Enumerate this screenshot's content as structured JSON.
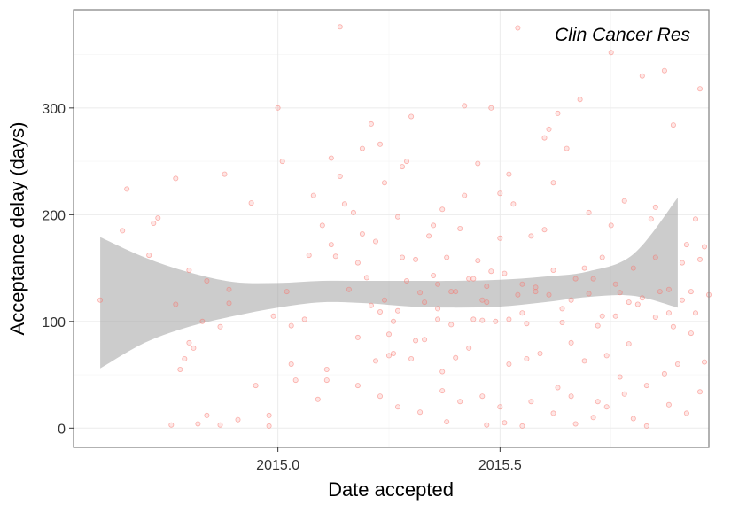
{
  "chart_data": {
    "type": "scatter",
    "annotation": "Clin Cancer Res",
    "xlabel": "Date accepted",
    "ylabel": "Acceptance delay (days)",
    "xlim": [
      2014.54,
      2015.97
    ],
    "ylim": [
      -18,
      392
    ],
    "x_ticks": [
      2015.0,
      2015.5
    ],
    "x_tick_labels": [
      "2015.0",
      "2015.5"
    ],
    "y_ticks": [
      0,
      100,
      200,
      300
    ],
    "y_tick_labels": [
      "0",
      "100",
      "200",
      "300"
    ],
    "grid": true,
    "colors": {
      "points": "#f8766d",
      "band": "#999999",
      "grid": "#ebebeb",
      "border": "#7f7f7f"
    },
    "smooth_band": {
      "x": [
        2014.6,
        2014.7,
        2014.8,
        2014.9,
        2015.0,
        2015.1,
        2015.2,
        2015.3,
        2015.4,
        2015.5,
        2015.6,
        2015.7,
        2015.8,
        2015.9
      ],
      "lower": [
        56,
        80,
        95,
        105,
        113,
        118,
        117,
        114,
        113,
        114,
        118,
        123,
        124,
        113
      ],
      "upper": [
        179,
        160,
        146,
        137,
        136,
        138,
        138,
        138,
        138,
        139,
        142,
        147,
        163,
        216
      ]
    },
    "points": [
      [
        2014.6,
        120
      ],
      [
        2014.65,
        185
      ],
      [
        2014.66,
        224
      ],
      [
        2014.71,
        162
      ],
      [
        2014.72,
        192
      ],
      [
        2014.73,
        197
      ],
      [
        2014.76,
        3
      ],
      [
        2014.77,
        234
      ],
      [
        2014.77,
        116
      ],
      [
        2014.78,
        55
      ],
      [
        2014.79,
        65
      ],
      [
        2014.8,
        80
      ],
      [
        2014.8,
        148
      ],
      [
        2014.81,
        75
      ],
      [
        2014.82,
        4
      ],
      [
        2014.83,
        100
      ],
      [
        2014.84,
        138
      ],
      [
        2014.84,
        12
      ],
      [
        2014.87,
        95
      ],
      [
        2014.87,
        3
      ],
      [
        2014.88,
        238
      ],
      [
        2014.89,
        130
      ],
      [
        2014.89,
        117
      ],
      [
        2014.91,
        8
      ],
      [
        2014.94,
        211
      ],
      [
        2014.95,
        40
      ],
      [
        2014.98,
        2
      ],
      [
        2014.98,
        12
      ],
      [
        2014.99,
        105
      ],
      [
        2015.0,
        300
      ],
      [
        2015.01,
        250
      ],
      [
        2015.02,
        128
      ],
      [
        2015.03,
        60
      ],
      [
        2015.03,
        96
      ],
      [
        2015.04,
        45
      ],
      [
        2015.06,
        102
      ],
      [
        2015.07,
        162
      ],
      [
        2015.08,
        218
      ],
      [
        2015.09,
        27
      ],
      [
        2015.1,
        190
      ],
      [
        2015.11,
        55
      ],
      [
        2015.11,
        45
      ],
      [
        2015.12,
        172
      ],
      [
        2015.12,
        253
      ],
      [
        2015.13,
        161
      ],
      [
        2015.14,
        236
      ],
      [
        2015.14,
        376
      ],
      [
        2015.15,
        210
      ],
      [
        2015.16,
        130
      ],
      [
        2015.17,
        202
      ],
      [
        2015.18,
        85
      ],
      [
        2015.18,
        155
      ],
      [
        2015.19,
        262
      ],
      [
        2015.19,
        182
      ],
      [
        2015.2,
        141
      ],
      [
        2015.21,
        285
      ],
      [
        2015.22,
        63
      ],
      [
        2015.22,
        175
      ],
      [
        2015.23,
        109
      ],
      [
        2015.23,
        266
      ],
      [
        2015.24,
        230
      ],
      [
        2015.25,
        68
      ],
      [
        2015.25,
        88
      ],
      [
        2015.26,
        70
      ],
      [
        2015.27,
        198
      ],
      [
        2015.27,
        110
      ],
      [
        2015.28,
        160
      ],
      [
        2015.28,
        245
      ],
      [
        2015.29,
        250
      ],
      [
        2015.3,
        65
      ],
      [
        2015.3,
        292
      ],
      [
        2015.31,
        82
      ],
      [
        2015.31,
        158
      ],
      [
        2015.32,
        127
      ],
      [
        2015.33,
        83
      ],
      [
        2015.34,
        180
      ],
      [
        2015.35,
        143
      ],
      [
        2015.35,
        190
      ],
      [
        2015.36,
        135
      ],
      [
        2015.36,
        112
      ],
      [
        2015.37,
        53
      ],
      [
        2015.37,
        205
      ],
      [
        2015.38,
        6
      ],
      [
        2015.38,
        160
      ],
      [
        2015.39,
        97
      ],
      [
        2015.39,
        128
      ],
      [
        2015.4,
        66
      ],
      [
        2015.41,
        187
      ],
      [
        2015.42,
        218
      ],
      [
        2015.42,
        302
      ],
      [
        2015.43,
        140
      ],
      [
        2015.43,
        75
      ],
      [
        2015.44,
        102
      ],
      [
        2015.45,
        157
      ],
      [
        2015.45,
        248
      ],
      [
        2015.46,
        120
      ],
      [
        2015.46,
        101
      ],
      [
        2015.47,
        133
      ],
      [
        2015.47,
        3
      ],
      [
        2015.48,
        300
      ],
      [
        2015.48,
        147
      ],
      [
        2015.49,
        100
      ],
      [
        2015.5,
        220
      ],
      [
        2015.5,
        178
      ],
      [
        2015.51,
        145
      ],
      [
        2015.51,
        5
      ],
      [
        2015.52,
        238
      ],
      [
        2015.52,
        60
      ],
      [
        2015.53,
        210
      ],
      [
        2015.54,
        375
      ],
      [
        2015.54,
        125
      ],
      [
        2015.55,
        135
      ],
      [
        2015.55,
        2
      ],
      [
        2015.56,
        65
      ],
      [
        2015.56,
        98
      ],
      [
        2015.57,
        180
      ],
      [
        2015.58,
        128
      ],
      [
        2015.59,
        70
      ],
      [
        2015.6,
        272
      ],
      [
        2015.6,
        186
      ],
      [
        2015.61,
        280
      ],
      [
        2015.62,
        148
      ],
      [
        2015.62,
        230
      ],
      [
        2015.63,
        295
      ],
      [
        2015.63,
        38
      ],
      [
        2015.64,
        99
      ],
      [
        2015.65,
        262
      ],
      [
        2015.66,
        120
      ],
      [
        2015.66,
        80
      ],
      [
        2015.67,
        4
      ],
      [
        2015.68,
        308
      ],
      [
        2015.69,
        150
      ],
      [
        2015.69,
        63
      ],
      [
        2015.7,
        202
      ],
      [
        2015.71,
        140
      ],
      [
        2015.72,
        96
      ],
      [
        2015.72,
        25
      ],
      [
        2015.73,
        160
      ],
      [
        2015.74,
        68
      ],
      [
        2015.75,
        352
      ],
      [
        2015.75,
        190
      ],
      [
        2015.76,
        105
      ],
      [
        2015.77,
        127
      ],
      [
        2015.77,
        48
      ],
      [
        2015.78,
        213
      ],
      [
        2015.79,
        79
      ],
      [
        2015.8,
        9
      ],
      [
        2015.8,
        150
      ],
      [
        2015.81,
        116
      ],
      [
        2015.82,
        330
      ],
      [
        2015.83,
        2
      ],
      [
        2015.84,
        196
      ],
      [
        2015.85,
        207
      ],
      [
        2015.85,
        160
      ],
      [
        2015.86,
        128
      ],
      [
        2015.87,
        335
      ],
      [
        2015.87,
        51
      ],
      [
        2015.88,
        108
      ],
      [
        2015.89,
        284
      ],
      [
        2015.89,
        95
      ],
      [
        2015.9,
        60
      ],
      [
        2015.91,
        155
      ],
      [
        2015.92,
        172
      ],
      [
        2015.93,
        89
      ],
      [
        2015.93,
        128
      ],
      [
        2015.94,
        196
      ],
      [
        2015.95,
        318
      ],
      [
        2015.95,
        158
      ],
      [
        2015.96,
        170
      ],
      [
        2015.96,
        62
      ],
      [
        2015.21,
        115
      ],
      [
        2015.24,
        120
      ],
      [
        2015.26,
        100
      ],
      [
        2015.29,
        138
      ],
      [
        2015.33,
        118
      ],
      [
        2015.36,
        102
      ],
      [
        2015.4,
        128
      ],
      [
        2015.44,
        140
      ],
      [
        2015.47,
        118
      ],
      [
        2015.52,
        102
      ],
      [
        2015.55,
        108
      ],
      [
        2015.58,
        132
      ],
      [
        2015.61,
        125
      ],
      [
        2015.64,
        112
      ],
      [
        2015.67,
        140
      ],
      [
        2015.7,
        126
      ],
      [
        2015.73,
        105
      ],
      [
        2015.76,
        135
      ],
      [
        2015.79,
        118
      ],
      [
        2015.82,
        122
      ],
      [
        2015.85,
        104
      ],
      [
        2015.88,
        130
      ],
      [
        2015.91,
        120
      ],
      [
        2015.94,
        108
      ],
      [
        2015.97,
        125
      ],
      [
        2015.18,
        40
      ],
      [
        2015.23,
        30
      ],
      [
        2015.27,
        20
      ],
      [
        2015.32,
        15
      ],
      [
        2015.37,
        35
      ],
      [
        2015.41,
        25
      ],
      [
        2015.46,
        30
      ],
      [
        2015.5,
        20
      ],
      [
        2015.57,
        25
      ],
      [
        2015.62,
        14
      ],
      [
        2015.66,
        30
      ],
      [
        2015.71,
        10
      ],
      [
        2015.74,
        20
      ],
      [
        2015.78,
        32
      ],
      [
        2015.83,
        40
      ],
      [
        2015.88,
        22
      ],
      [
        2015.92,
        14
      ],
      [
        2015.95,
        34
      ]
    ]
  }
}
